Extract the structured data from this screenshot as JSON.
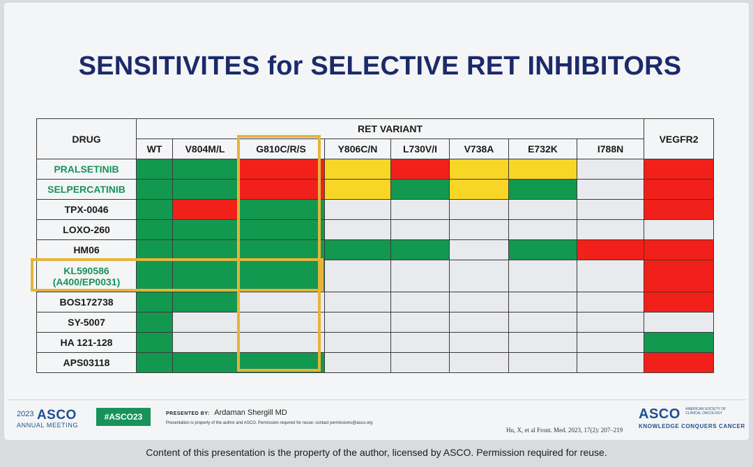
{
  "title": "SENSITIVITES for SELECTIVE RET INHIBITORS",
  "table": {
    "drug_header": "DRUG",
    "group_header": "RET VARIANT",
    "vegfr_header": "VEGFR2",
    "variants": [
      "WT",
      "V804M/L",
      "G810C/R/S",
      "Y806C/N",
      "L730V/I",
      "V738A",
      "E732K",
      "I788N"
    ],
    "rows": [
      {
        "drug": "PRALSETINIB",
        "drug_line2": "",
        "highlight": true,
        "cells": [
          "green",
          "green",
          "red",
          "yellow",
          "red",
          "yellow",
          "yellow",
          "blank",
          "red"
        ]
      },
      {
        "drug": "SELPERCATINIB",
        "drug_line2": "",
        "highlight": true,
        "cells": [
          "green",
          "green",
          "red",
          "yellow",
          "green",
          "yellow",
          "green",
          "blank",
          "red"
        ]
      },
      {
        "drug": "TPX-0046",
        "drug_line2": "",
        "highlight": false,
        "cells": [
          "green",
          "red",
          "green",
          "blank",
          "blank",
          "blank",
          "blank",
          "blank",
          "red"
        ]
      },
      {
        "drug": "LOXO-260",
        "drug_line2": "",
        "highlight": false,
        "cells": [
          "green",
          "green",
          "green",
          "blank",
          "blank",
          "blank",
          "blank",
          "blank",
          "blank"
        ]
      },
      {
        "drug": "HM06",
        "drug_line2": "",
        "highlight": false,
        "cells": [
          "green",
          "green",
          "green",
          "green",
          "green",
          "blank",
          "green",
          "red",
          "red"
        ]
      },
      {
        "drug": "KL590586",
        "drug_line2": "(A400/EP0031)",
        "highlight": true,
        "cells": [
          "green",
          "green",
          "green",
          "blank",
          "blank",
          "blank",
          "blank",
          "blank",
          "red"
        ]
      },
      {
        "drug": "BOS172738",
        "drug_line2": "",
        "highlight": false,
        "cells": [
          "green",
          "green",
          "blank",
          "blank",
          "blank",
          "blank",
          "blank",
          "blank",
          "red"
        ]
      },
      {
        "drug": "SY-5007",
        "drug_line2": "",
        "highlight": false,
        "cells": [
          "green",
          "blank",
          "blank",
          "blank",
          "blank",
          "blank",
          "blank",
          "blank",
          "blank"
        ]
      },
      {
        "drug": "HA 121-128",
        "drug_line2": "",
        "highlight": false,
        "cells": [
          "green",
          "blank",
          "blank",
          "blank",
          "blank",
          "blank",
          "blank",
          "blank",
          "green"
        ]
      },
      {
        "drug": "APS03118",
        "drug_line2": "",
        "highlight": false,
        "cells": [
          "green",
          "green",
          "green",
          "blank",
          "blank",
          "blank",
          "blank",
          "blank",
          "red"
        ]
      }
    ]
  },
  "colors": {
    "green": "#139850",
    "red": "#f2201a",
    "yellow": "#f7d626",
    "blank": "#e9eaee",
    "highlight_outline": "#e6b43a",
    "title_navy": "#1b2a6b"
  },
  "footer": {
    "asco_year": "2023",
    "asco_name": "ASCO",
    "asco_meeting": "ANNUAL MEETING",
    "hashtag": "#ASCO23",
    "presented_by": "PRESENTED BY:",
    "presenter": "Ardaman Shergill MD",
    "property_note": "Presentation is property of the author and ASCO. Permission required for reuse; contact permissions@asco.org",
    "citation": "Hu, X, et al Front. Med. 2023, 17(2): 207–219",
    "asco_right_name": "ASCO",
    "asco_society": "AMERICAN SOCIETY OF CLINICAL ONCOLOGY",
    "asco_tagline": "KNOWLEDGE CONQUERS CANCER"
  },
  "caption": "Content of this presentation is the property of the author, licensed by ASCO. Permission required for reuse."
}
